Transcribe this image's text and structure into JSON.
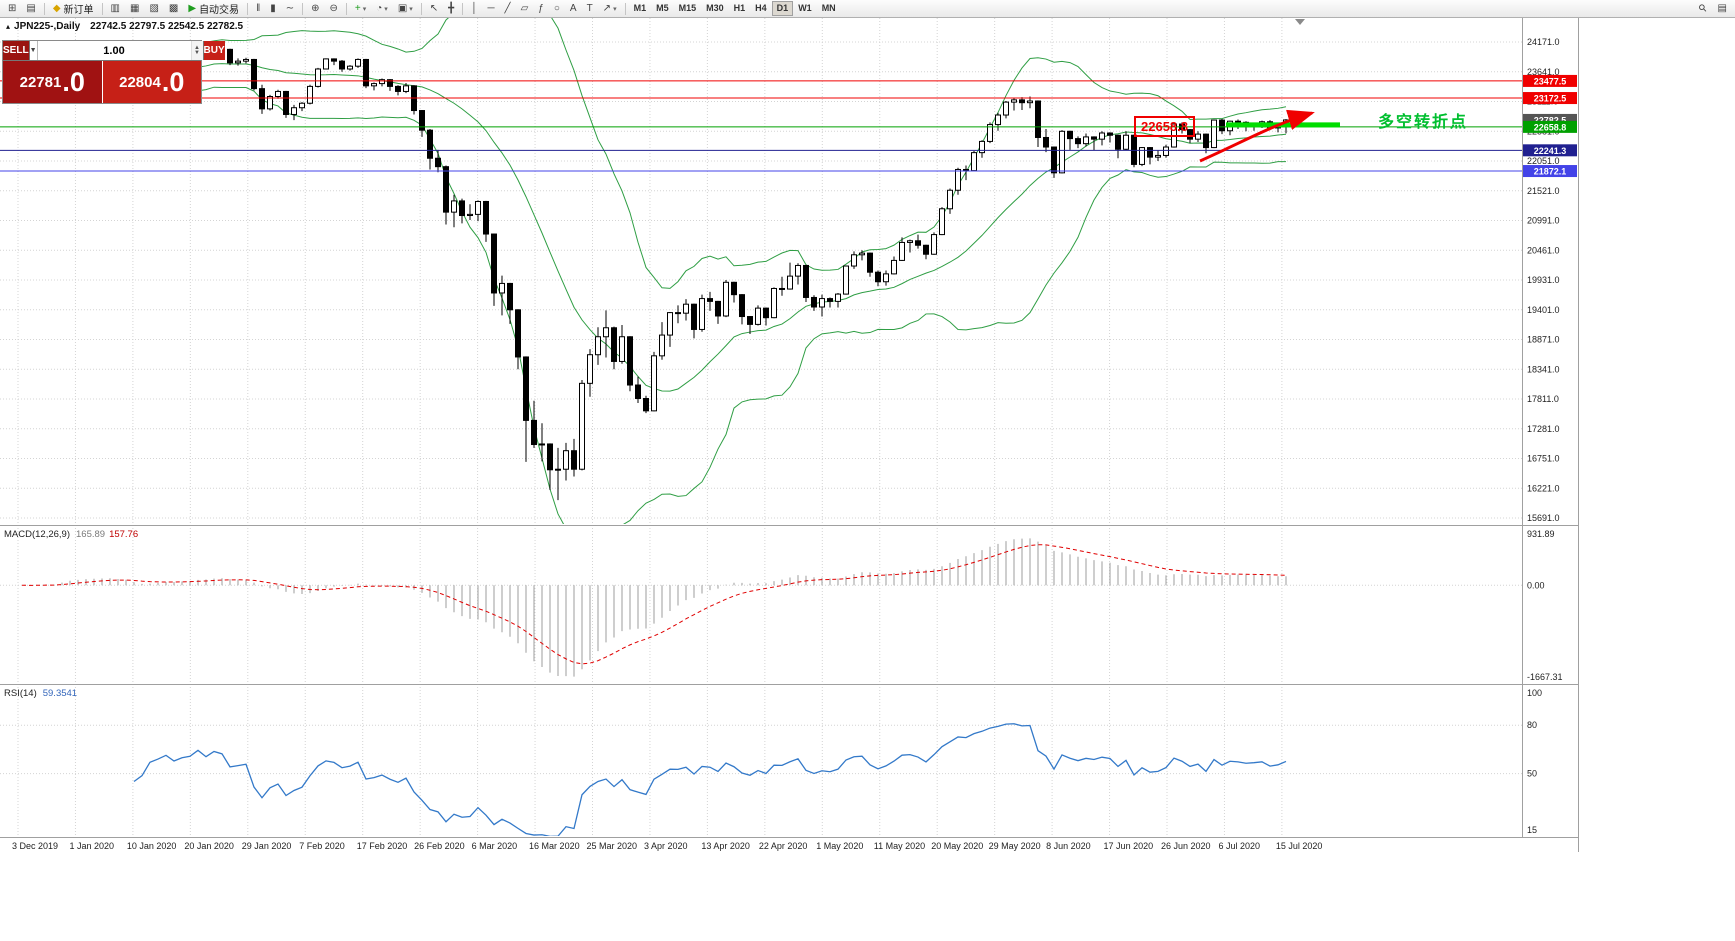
{
  "toolbar": {
    "items": [
      {
        "kind": "icon",
        "name": "new-chart-icon",
        "glyph": "⊞"
      },
      {
        "kind": "icon",
        "name": "profiles-icon",
        "glyph": "▤"
      },
      {
        "kind": "sep"
      },
      {
        "kind": "button",
        "name": "new-order-button",
        "label": "新订单",
        "glyph": "◆",
        "glyph_color": "#d8a400"
      },
      {
        "kind": "sep"
      },
      {
        "kind": "icon",
        "name": "market-watch-icon",
        "glyph": "▥"
      },
      {
        "kind": "icon",
        "name": "data-window-icon",
        "glyph": "▦"
      },
      {
        "kind": "icon",
        "name": "navigator-icon",
        "glyph": "▧"
      },
      {
        "kind": "icon",
        "name": "terminal-icon",
        "glyph": "▩"
      },
      {
        "kind": "button",
        "name": "autotrading-button",
        "label": "自动交易",
        "glyph": "▶",
        "glyph_color": "#1f9d1f"
      },
      {
        "kind": "sep"
      },
      {
        "kind": "icon",
        "name": "bar-chart-icon",
        "glyph": "‖"
      },
      {
        "kind": "icon",
        "name": "candlestick-chart-icon",
        "glyph": "▮"
      },
      {
        "kind": "icon",
        "name": "line-chart-icon",
        "glyph": "∼"
      },
      {
        "kind": "sep"
      },
      {
        "kind": "icon",
        "name": "zoom-in-icon",
        "glyph": "⊕"
      },
      {
        "kind": "icon",
        "name": "zoom-out-icon",
        "glyph": "⊖"
      },
      {
        "kind": "sep"
      },
      {
        "kind": "icon",
        "name": "indicators-icon",
        "glyph": "+",
        "glyph_color": "#1f9d1f",
        "caret": true
      },
      {
        "kind": "icon",
        "name": "periods-icon",
        "glyph": "◔",
        "caret": true
      },
      {
        "kind": "icon",
        "name": "templates-icon",
        "glyph": "▣",
        "caret": true
      },
      {
        "kind": "sep"
      },
      {
        "kind": "icon",
        "name": "cursor-icon",
        "glyph": "↖"
      },
      {
        "kind": "icon",
        "name": "crosshair-icon",
        "glyph": "╋"
      },
      {
        "kind": "sep"
      },
      {
        "kind": "icon",
        "name": "vertical-line-icon",
        "glyph": "│"
      },
      {
        "kind": "icon",
        "name": "horizontal-line-icon",
        "glyph": "─"
      },
      {
        "kind": "icon",
        "name": "trendline-icon",
        "glyph": "╱"
      },
      {
        "kind": "icon",
        "name": "channel-icon",
        "glyph": "▱"
      },
      {
        "kind": "icon",
        "name": "fibonacci-icon",
        "glyph": "ƒ"
      },
      {
        "kind": "icon",
        "name": "shapes-icon",
        "glyph": "○"
      },
      {
        "kind": "icon",
        "name": "text-icon",
        "glyph": "A"
      },
      {
        "kind": "icon",
        "name": "text-label-icon",
        "glyph": "T"
      },
      {
        "kind": "icon",
        "name": "arrows-icon",
        "glyph": "↗",
        "caret": true
      },
      {
        "kind": "sep"
      }
    ],
    "timeframes": [
      "M1",
      "M5",
      "M15",
      "M30",
      "H1",
      "H4",
      "D1",
      "W1",
      "MN"
    ],
    "active_timeframe": "D1",
    "right_items": [
      {
        "kind": "icon",
        "name": "search-icon",
        "glyph": "⚲"
      },
      {
        "kind": "icon",
        "name": "quick-settings-icon",
        "glyph": "▤"
      }
    ]
  },
  "chart_header": {
    "icon": "▴",
    "symbol": "JPN225-,Daily",
    "ohlc": "22742.5 22797.5 22542.5 22782.5"
  },
  "trade_panel": {
    "sell_label": "SELL",
    "buy_label": "BUY",
    "volume": "1.00",
    "dropdown_icon": "▼",
    "spinner_up": "▲",
    "spinner_down": "▼",
    "sell_main": "22781",
    "sell_frac": ".0",
    "buy_main": "22804",
    "buy_frac": ".0"
  },
  "annotations": {
    "price_box_text": "22658.8",
    "cn_text": "多空转折点"
  },
  "indicators_panel": {
    "macd": {
      "title": "MACD(12,26,9)",
      "value_main": "165.89",
      "value_signal": "157.76",
      "axis_labels": [
        "931.89",
        "0.00",
        "-1667.31"
      ],
      "range": [
        -1667.31,
        931.89
      ],
      "histogram_color": "#9c9c9c",
      "signal_color": "#e00000"
    },
    "rsi": {
      "title": "RSI(14)",
      "value": "59.3541",
      "axis_labels": [
        "100",
        "80",
        "50",
        "15"
      ],
      "range": [
        15,
        100
      ],
      "levels": [
        80,
        50
      ],
      "line_color": "#3379c9"
    }
  },
  "chart_data": {
    "type": "candlestick",
    "symbol": "JPN225-",
    "timeframe": "Daily",
    "ohlc_display": [
      22742.5,
      22797.5,
      22542.5,
      22782.5
    ],
    "y_axis": {
      "min": 15691.0,
      "max": 24171.0,
      "tick_step": 530,
      "labels": [
        "24171.0",
        "23641.0",
        "23111.0",
        "22581.0",
        "22051.0",
        "21521.0",
        "20991.0",
        "20461.0",
        "19931.0",
        "19401.0",
        "18871.0",
        "18341.0",
        "17811.0",
        "17281.0",
        "16751.0",
        "16221.0",
        "15691.0"
      ]
    },
    "x_axis": {
      "labels": [
        "3 Dec 2019",
        "1 Jan 2020",
        "10 Jan 2020",
        "20 Jan 2020",
        "29 Jan 2020",
        "7 Feb 2020",
        "17 Feb 2020",
        "26 Feb 2020",
        "6 Mar 2020",
        "16 Mar 2020",
        "25 Mar 2020",
        "3 Apr 2020",
        "13 Apr 2020",
        "22 Apr 2020",
        "1 May 2020",
        "11 May 2020",
        "20 May 2020",
        "29 May 2020",
        "8 Jun 2020",
        "17 Jun 2020",
        "26 Jun 2020",
        "6 Jul 2020",
        "15 Jul 2020"
      ]
    },
    "bollinger": {
      "period": 20,
      "deviation": 2,
      "color": "#2f9e44"
    },
    "horizontal_lines": [
      {
        "price": 23477.5,
        "color": "#f00000"
      },
      {
        "price": 23172.5,
        "color": "#f00000"
      },
      {
        "price": 22658.8,
        "color": "#00a000"
      },
      {
        "price": 22241.3,
        "color": "#202090"
      },
      {
        "price": 21872.1,
        "color": "#4343e8"
      }
    ],
    "current_price": {
      "value": 22782.5,
      "color": "#555555"
    },
    "highlight_segment": {
      "price": 22658.8,
      "color": "#00dd00"
    },
    "candles": [
      [
        23330,
        23430,
        23270,
        23380
      ],
      [
        23380,
        23420,
        23300,
        23320
      ],
      [
        23320,
        23450,
        23280,
        23430
      ],
      [
        23430,
        23560,
        23350,
        23520
      ],
      [
        23520,
        23580,
        23360,
        23390
      ],
      [
        23390,
        23930,
        23380,
        23900
      ],
      [
        23900,
        23990,
        23850,
        23950
      ],
      [
        23950,
        23970,
        23780,
        23820
      ],
      [
        23820,
        23880,
        23790,
        23850
      ],
      [
        23850,
        23880,
        23800,
        23830
      ],
      [
        23830,
        23870,
        23790,
        23820
      ],
      [
        23820,
        23880,
        23800,
        23850
      ],
      [
        23850,
        23900,
        23640,
        23650
      ],
      [
        23650,
        23700,
        23590,
        23660
      ],
      [
        23660,
        23670,
        23150,
        23200
      ],
      [
        23200,
        23400,
        23170,
        23320
      ],
      [
        23320,
        23680,
        23300,
        23650
      ],
      [
        23650,
        23780,
        23630,
        23740
      ],
      [
        23740,
        23870,
        23720,
        23850
      ],
      [
        23850,
        23860,
        23700,
        23740
      ],
      [
        23740,
        23860,
        23720,
        23830
      ],
      [
        23830,
        23900,
        23780,
        23870
      ],
      [
        23870,
        24060,
        23840,
        24040
      ],
      [
        24040,
        24050,
        23890,
        23930
      ],
      [
        23930,
        24090,
        23920,
        24080
      ],
      [
        24080,
        24090,
        23970,
        24040
      ],
      [
        24040,
        24050,
        23760,
        23800
      ],
      [
        23800,
        23880,
        23750,
        23830
      ],
      [
        23830,
        23890,
        23790,
        23860
      ],
      [
        23860,
        23870,
        23310,
        23340
      ],
      [
        23340,
        23410,
        22890,
        22980
      ],
      [
        22980,
        23230,
        22950,
        23200
      ],
      [
        23200,
        23320,
        23160,
        23290
      ],
      [
        23290,
        23300,
        22820,
        22880
      ],
      [
        22880,
        23050,
        22780,
        23000
      ],
      [
        23000,
        23100,
        22940,
        23080
      ],
      [
        23080,
        23410,
        23060,
        23380
      ],
      [
        23380,
        23710,
        23360,
        23690
      ],
      [
        23690,
        23880,
        23680,
        23870
      ],
      [
        23870,
        23880,
        23760,
        23830
      ],
      [
        23830,
        23850,
        23640,
        23690
      ],
      [
        23690,
        23760,
        23660,
        23740
      ],
      [
        23740,
        23880,
        23710,
        23860
      ],
      [
        23860,
        23870,
        23350,
        23390
      ],
      [
        23390,
        23450,
        23310,
        23430
      ],
      [
        23430,
        23520,
        23380,
        23500
      ],
      [
        23500,
        23510,
        23300,
        23380
      ],
      [
        23380,
        23400,
        23220,
        23290
      ],
      [
        23290,
        23440,
        23260,
        23390
      ],
      [
        23390,
        23400,
        22880,
        22950
      ],
      [
        22950,
        22960,
        22480,
        22600
      ],
      [
        22600,
        22620,
        21900,
        22100
      ],
      [
        22100,
        22250,
        21850,
        21950
      ],
      [
        21950,
        21970,
        20920,
        21140
      ],
      [
        21140,
        21450,
        20870,
        21340
      ],
      [
        21340,
        21380,
        20940,
        21080
      ],
      [
        21080,
        21280,
        21000,
        21100
      ],
      [
        21100,
        21350,
        20980,
        21330
      ],
      [
        21330,
        21340,
        20610,
        20750
      ],
      [
        20750,
        20760,
        19470,
        19700
      ],
      [
        19700,
        20010,
        19300,
        19870
      ],
      [
        19870,
        19880,
        19150,
        19400
      ],
      [
        19400,
        19410,
        18340,
        18560
      ],
      [
        18560,
        18570,
        16690,
        17430
      ],
      [
        17430,
        17780,
        16940,
        17000
      ],
      [
        17000,
        17380,
        16700,
        17010
      ],
      [
        17010,
        17020,
        16190,
        16550
      ],
      [
        16550,
        16940,
        16010,
        16560
      ],
      [
        16560,
        17030,
        16360,
        16890
      ],
      [
        16890,
        17100,
        16430,
        16560
      ],
      [
        16560,
        18150,
        16540,
        18090
      ],
      [
        18090,
        18700,
        17850,
        18600
      ],
      [
        18600,
        19090,
        18420,
        18920
      ],
      [
        18920,
        19390,
        18550,
        19080
      ],
      [
        19080,
        19100,
        18340,
        18480
      ],
      [
        18480,
        19130,
        18440,
        18920
      ],
      [
        18920,
        18930,
        17950,
        18060
      ],
      [
        18060,
        18210,
        17740,
        17820
      ],
      [
        17820,
        17870,
        17560,
        17600
      ],
      [
        17600,
        18650,
        17590,
        18580
      ],
      [
        18580,
        19180,
        18510,
        18950
      ],
      [
        18950,
        19360,
        18740,
        19350
      ],
      [
        19350,
        19480,
        19160,
        19340
      ],
      [
        19340,
        19590,
        19210,
        19500
      ],
      [
        19500,
        19510,
        18890,
        19050
      ],
      [
        19050,
        19670,
        19010,
        19600
      ],
      [
        19600,
        19720,
        19380,
        19550
      ],
      [
        19550,
        19560,
        19150,
        19290
      ],
      [
        19290,
        19930,
        19270,
        19890
      ],
      [
        19890,
        19900,
        19530,
        19670
      ],
      [
        19670,
        19680,
        19140,
        19280
      ],
      [
        19280,
        19290,
        18970,
        19140
      ],
      [
        19140,
        19480,
        19120,
        19430
      ],
      [
        19430,
        19440,
        19120,
        19260
      ],
      [
        19260,
        19800,
        19250,
        19780
      ],
      [
        19780,
        19990,
        19650,
        19770
      ],
      [
        19770,
        20240,
        19760,
        20000
      ],
      [
        20000,
        20230,
        19850,
        20190
      ],
      [
        20190,
        20200,
        19540,
        19620
      ],
      [
        19620,
        19660,
        19380,
        19450
      ],
      [
        19450,
        19670,
        19280,
        19600
      ],
      [
        19600,
        19620,
        19440,
        19550
      ],
      [
        19550,
        19700,
        19440,
        19680
      ],
      [
        19680,
        20190,
        19670,
        20180
      ],
      [
        20180,
        20440,
        20130,
        20380
      ],
      [
        20380,
        20460,
        20280,
        20410
      ],
      [
        20410,
        20420,
        19990,
        20070
      ],
      [
        20070,
        20100,
        19820,
        19900
      ],
      [
        19900,
        20100,
        19830,
        20040
      ],
      [
        20040,
        20350,
        20030,
        20280
      ],
      [
        20280,
        20690,
        20270,
        20600
      ],
      [
        20600,
        20650,
        20420,
        20630
      ],
      [
        20630,
        20740,
        20490,
        20550
      ],
      [
        20550,
        20560,
        20300,
        20390
      ],
      [
        20390,
        20780,
        20380,
        20740
      ],
      [
        20740,
        21230,
        20730,
        21200
      ],
      [
        21200,
        21560,
        21110,
        21530
      ],
      [
        21530,
        21930,
        21450,
        21900
      ],
      [
        21900,
        21970,
        21710,
        21880
      ],
      [
        21880,
        22230,
        21870,
        22200
      ],
      [
        22200,
        22420,
        22110,
        22400
      ],
      [
        22400,
        22740,
        22370,
        22700
      ],
      [
        22700,
        22910,
        22590,
        22870
      ],
      [
        22870,
        23120,
        22810,
        23100
      ],
      [
        23100,
        23180,
        22950,
        23140
      ],
      [
        23140,
        23190,
        22960,
        23090
      ],
      [
        23090,
        23200,
        22990,
        23120
      ],
      [
        23120,
        23130,
        22300,
        22470
      ],
      [
        22470,
        22620,
        22210,
        22300
      ],
      [
        22300,
        22310,
        21750,
        21840
      ],
      [
        21840,
        22600,
        21830,
        22580
      ],
      [
        22580,
        22590,
        22250,
        22450
      ],
      [
        22450,
        22490,
        22280,
        22360
      ],
      [
        22360,
        22540,
        22310,
        22480
      ],
      [
        22480,
        22490,
        22240,
        22440
      ],
      [
        22440,
        22580,
        22330,
        22550
      ],
      [
        22550,
        22560,
        22380,
        22510
      ],
      [
        22510,
        22520,
        22100,
        22260
      ],
      [
        22260,
        22580,
        22240,
        22510
      ],
      [
        22510,
        22520,
        21940,
        21990
      ],
      [
        21990,
        22300,
        21960,
        22290
      ],
      [
        22290,
        22300,
        21990,
        22120
      ],
      [
        22120,
        22240,
        22050,
        22150
      ],
      [
        22150,
        22340,
        22110,
        22300
      ],
      [
        22300,
        22720,
        22290,
        22710
      ],
      [
        22710,
        22740,
        22540,
        22610
      ],
      [
        22610,
        22620,
        22370,
        22440
      ],
      [
        22440,
        22580,
        22390,
        22530
      ],
      [
        22530,
        22540,
        22190,
        22290
      ],
      [
        22290,
        22790,
        22280,
        22780
      ],
      [
        22780,
        22800,
        22530,
        22590
      ],
      [
        22590,
        22770,
        22510,
        22760
      ],
      [
        22760,
        22790,
        22620,
        22740
      ],
      [
        22740,
        22760,
        22580,
        22700
      ],
      [
        22700,
        22730,
        22590,
        22720
      ],
      [
        22720,
        22770,
        22640,
        22750
      ],
      [
        22750,
        22780,
        22600,
        22640
      ],
      [
        22640,
        22700,
        22560,
        22680
      ],
      [
        22742.5,
        22797.5,
        22542.5,
        22782.5
      ]
    ]
  }
}
